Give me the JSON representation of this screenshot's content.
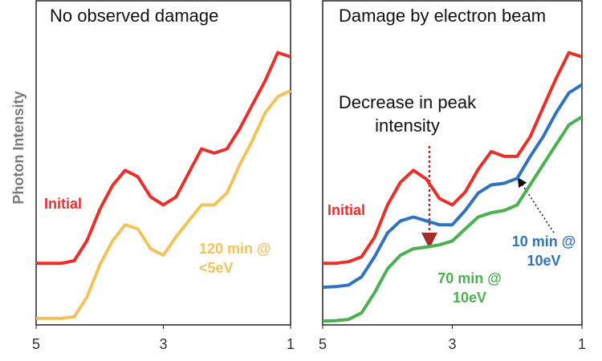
{
  "chart_data": [
    {
      "type": "line",
      "title": "No observed damage",
      "ylabel": "Photon Intensity",
      "x": [
        5,
        4.8,
        4.6,
        4.4,
        4.2,
        4.0,
        3.8,
        3.6,
        3.4,
        3.2,
        3.0,
        2.8,
        2.6,
        2.4,
        2.2,
        2.0,
        1.8,
        1.6,
        1.4,
        1.2,
        1.0
      ],
      "xlim": [
        5,
        1
      ],
      "xticks": [
        5,
        3,
        1
      ],
      "ylim": [
        0,
        100
      ],
      "series": [
        {
          "name": "Initial",
          "color": "#e8302a",
          "values": [
            19,
            19,
            19,
            19.8,
            26,
            35.6,
            43,
            47.7,
            45.7,
            39.5,
            37,
            39.5,
            46.9,
            54.3,
            53,
            54.3,
            60.5,
            67.9,
            75.3,
            84,
            82.7
          ]
        },
        {
          "name": "120 min @ <5eV",
          "color": "#f2c35a",
          "values": [
            2,
            2,
            2,
            2.5,
            8.6,
            18.5,
            25.9,
            30.9,
            29.6,
            23.5,
            21.5,
            27.2,
            32.1,
            37,
            37,
            40.7,
            49.4,
            56.8,
            65.4,
            70.4,
            72.3
          ]
        }
      ]
    },
    {
      "type": "line",
      "title": "Damage by electron beam",
      "annotation": "Decrease in peak intensity",
      "x": [
        5,
        4.8,
        4.6,
        4.4,
        4.2,
        4.0,
        3.8,
        3.6,
        3.4,
        3.2,
        3.0,
        2.8,
        2.6,
        2.4,
        2.2,
        2.0,
        1.8,
        1.6,
        1.4,
        1.2,
        1.0
      ],
      "xlim": [
        5,
        1
      ],
      "xticks": [
        5,
        3,
        1
      ],
      "ylim": [
        0,
        100
      ],
      "series": [
        {
          "name": "Initial",
          "color": "#e8302a",
          "values": [
            19,
            19,
            19.5,
            21,
            27,
            37,
            44,
            47.7,
            45,
            39,
            37,
            41,
            48,
            53.5,
            52,
            52,
            58,
            67,
            76,
            84,
            82.7
          ]
        },
        {
          "name": "10 min @ 10eV",
          "color": "#2f73c0",
          "values": [
            11.6,
            11.8,
            12.3,
            14.8,
            21,
            28.4,
            32.1,
            33.3,
            32.1,
            30.9,
            30.9,
            35.3,
            40.7,
            43.2,
            43.7,
            45.2,
            51.9,
            58,
            65.4,
            71.6,
            74.1
          ]
        },
        {
          "name": "70 min @ 10eV",
          "color": "#4bb04f",
          "values": [
            1.2,
            1.3,
            1.7,
            3.7,
            9.9,
            17.3,
            21.5,
            23.5,
            24,
            24.7,
            25.9,
            29.6,
            33.3,
            34.6,
            35.3,
            37,
            43.2,
            49.4,
            55.6,
            61.7,
            64.2
          ]
        }
      ]
    }
  ]
}
